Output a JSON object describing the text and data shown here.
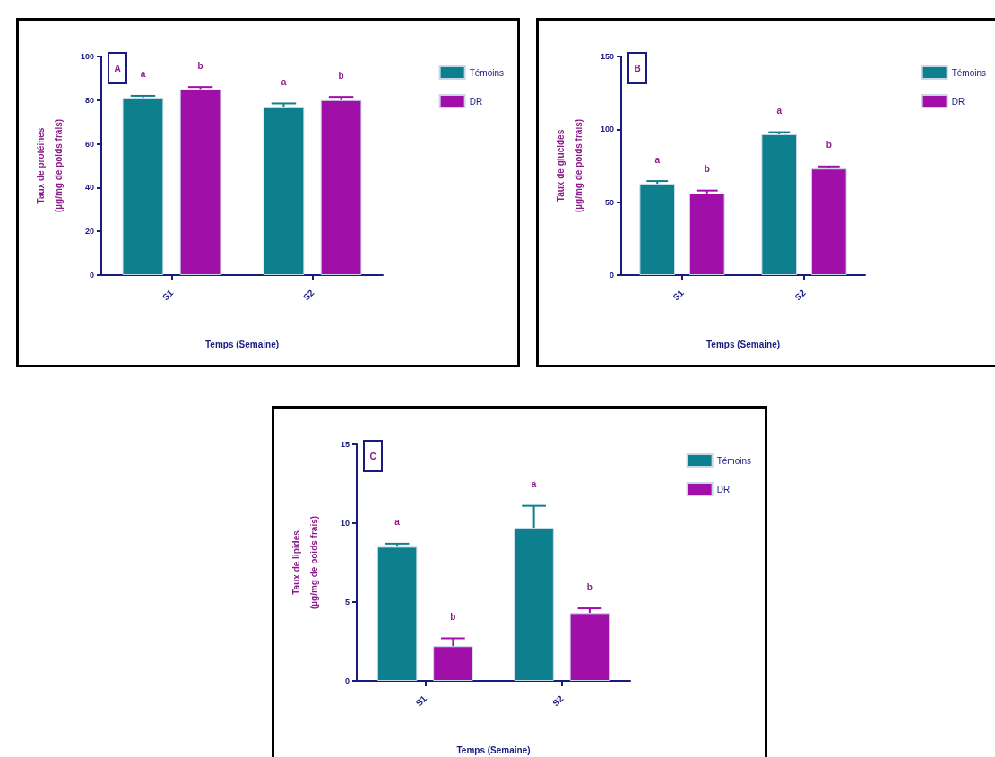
{
  "chart_data": [
    {
      "type": "bar",
      "xlabel": "Temps (Semaine)",
      "ylabel": "Taux de protéines\n(µg/mg de poids frais)",
      "categories": [
        "S1",
        "S2"
      ],
      "series": [
        {
          "name": "Témoins",
          "color": "#0e7f8c",
          "values": [
            81,
            77
          ],
          "errors": [
            [
              81,
              82
            ],
            [
              77,
              78.5
            ]
          ]
        },
        {
          "name": "DR",
          "color": "#a010a8",
          "values": [
            85,
            80
          ],
          "errors": [
            [
              85,
              86
            ],
            [
              80,
              81.5
            ]
          ]
        }
      ],
      "ylim": [
        0,
        100
      ],
      "yticks": [
        0,
        20,
        40,
        60,
        80,
        100
      ],
      "grid": false,
      "legend": "top right",
      "annotations": [
        "A",
        "a",
        "b",
        "a",
        "b"
      ]
    },
    {
      "type": "bar",
      "xlabel": "Temps (Semaine)",
      "ylabel": "Taux de glucides\n(µg/mg de poids frais)",
      "categories": [
        "S1",
        "S2"
      ],
      "series": [
        {
          "name": "Témoins",
          "color": "#0e7f8c",
          "values": [
            62.5,
            96.5
          ],
          "errors": [
            [
              62.5,
              64.5
            ],
            [
              96.5,
              98
            ]
          ]
        },
        {
          "name": "DR",
          "color": "#a010a8",
          "values": [
            56,
            73
          ],
          "errors": [
            [
              56,
              58
            ],
            [
              73,
              74.5
            ]
          ]
        }
      ],
      "ylim": [
        0,
        150
      ],
      "yticks": [
        0,
        50,
        100,
        150
      ],
      "grid": false,
      "legend": "top right",
      "annotations": [
        "B",
        "a",
        "b",
        "a",
        "b"
      ]
    },
    {
      "type": "bar",
      "xlabel": "Temps (Semaine)",
      "ylabel": "Taux de lipides\n(µg/mg de poids frais)",
      "categories": [
        "S1",
        "S2"
      ],
      "series": [
        {
          "name": "Témoins",
          "color": "#0e7f8c",
          "values": [
            8.5,
            9.7
          ],
          "errors": [
            [
              8.5,
              8.7
            ],
            [
              9.7,
              11.1
            ]
          ]
        },
        {
          "name": "DR",
          "color": "#a010a8",
          "values": [
            2.2,
            4.3
          ],
          "errors": [
            [
              2.2,
              2.7
            ],
            [
              4.3,
              4.6
            ]
          ]
        }
      ],
      "ylim": [
        0,
        15
      ],
      "yticks": [
        0,
        5,
        10,
        15
      ],
      "grid": false,
      "legend": "top right",
      "annotations": [
        "C",
        "a",
        "b",
        "a",
        "b"
      ]
    }
  ]
}
